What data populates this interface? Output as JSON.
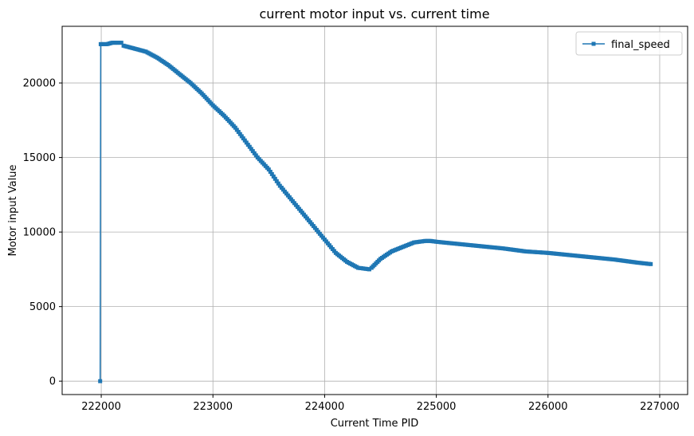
{
  "chart_data": {
    "type": "line",
    "title": "current motor input vs. current time",
    "xlabel": "Current Time PID",
    "ylabel": "Motor input Value",
    "xlim": [
      221650,
      227250
    ],
    "ylim": [
      -900,
      23800
    ],
    "xticks": [
      222000,
      223000,
      224000,
      225000,
      226000,
      227000
    ],
    "yticks": [
      0,
      5000,
      10000,
      15000,
      20000
    ],
    "grid": true,
    "legend_position": "top-right",
    "series": [
      {
        "name": "final_speed",
        "color": "#1f77b4",
        "marker": "square",
        "x": [
          221990,
          221995,
          222000,
          222050,
          222100,
          222150,
          222180,
          222200,
          222300,
          222400,
          222500,
          222600,
          222700,
          222800,
          222900,
          223000,
          223100,
          223200,
          223300,
          223400,
          223500,
          223600,
          223700,
          223800,
          223900,
          224000,
          224100,
          224200,
          224300,
          224400,
          224420,
          224500,
          224600,
          224700,
          224800,
          224900,
          224950,
          225000,
          225200,
          225400,
          225600,
          225800,
          226000,
          226200,
          226400,
          226600,
          226800,
          226920
        ],
        "y": [
          0,
          22600,
          22600,
          22600,
          22700,
          22700,
          22700,
          22500,
          22300,
          22100,
          21700,
          21200,
          20600,
          20000,
          19300,
          18500,
          17800,
          17000,
          16000,
          15000,
          14200,
          13100,
          12200,
          11300,
          10400,
          9500,
          8600,
          8000,
          7600,
          7500,
          7600,
          8200,
          8700,
          9000,
          9300,
          9400,
          9400,
          9350,
          9200,
          9050,
          8900,
          8700,
          8600,
          8450,
          8300,
          8150,
          7950,
          7850
        ]
      }
    ]
  }
}
